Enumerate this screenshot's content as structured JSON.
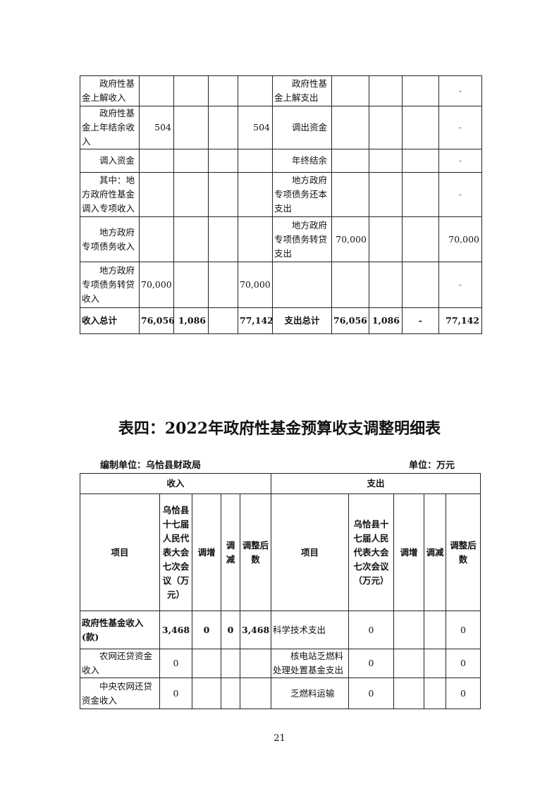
{
  "table3_continued": {
    "rows": [
      {
        "in_item": "政府性基金上解收入",
        "in_v1": "",
        "in_v2": "",
        "in_v3": "",
        "in_v4": "",
        "out_item": "政府性基金上解支出",
        "out_v1": "",
        "out_v2": "",
        "out_v3": "",
        "out_v4": "-"
      },
      {
        "in_item": "政府性基金上年结余收入",
        "in_v1": "504",
        "in_v2": "",
        "in_v3": "",
        "in_v4": "504",
        "out_item": "调出资金",
        "out_v1": "",
        "out_v2": "",
        "out_v3": "",
        "out_v4": "-"
      },
      {
        "in_item": "调入资金",
        "in_v1": "",
        "in_v2": "",
        "in_v3": "",
        "in_v4": "",
        "out_item": "年终结余",
        "out_v1": "",
        "out_v2": "",
        "out_v3": "",
        "out_v4": "-"
      },
      {
        "in_item": "其中：地方政府性基金调入专项收入",
        "in_v1": "",
        "in_v2": "",
        "in_v3": "",
        "in_v4": "",
        "out_item": "地方政府专项债务还本支出",
        "out_v1": "",
        "out_v2": "",
        "out_v3": "",
        "out_v4": "-"
      },
      {
        "in_item": "地方政府专项债务收入",
        "in_v1": "",
        "in_v2": "",
        "in_v3": "",
        "in_v4": "",
        "out_item": "地方政府专项债务转贷支出",
        "out_v1": "70,000",
        "out_v2": "",
        "out_v3": "",
        "out_v4": "70,000"
      },
      {
        "in_item": "地方政府专项债务转贷收入",
        "in_v1": "70,000",
        "in_v2": "",
        "in_v3": "",
        "in_v4": "70,000",
        "out_item": "",
        "out_v1": "",
        "out_v2": "",
        "out_v3": "",
        "out_v4": "-"
      }
    ],
    "total": {
      "in_item": "收入总计",
      "in_v1": "76,056",
      "in_v2": "1,086",
      "in_v3": "",
      "in_v4": "77,142",
      "out_item": "支出总计",
      "out_v1": "76,056",
      "out_v2": "1,086",
      "out_v3": "-",
      "out_v4": "77,142"
    }
  },
  "table4": {
    "title": "表四：2022年政府性基金预算收支调整明细表",
    "compiler": "编制单位：乌恰县财政局",
    "unit": "单位：万元",
    "group_income": "收入",
    "group_expense": "支出",
    "headers_in": [
      "项目",
      "乌恰县十七届人民代表大会七次会议（万元）",
      "调增",
      "调减",
      "调整后数"
    ],
    "headers_out": [
      "项目",
      "乌恰县十七届人民代表大会七次会议（万元）",
      "调增",
      "调减",
      "调整后数"
    ],
    "rows": [
      {
        "in_item": "政府性基金收入(款)",
        "in_v1": "3,468",
        "in_v2": "0",
        "in_v3": "0",
        "in_v4": "3,468",
        "out_item": "科学技术支出",
        "out_v1": "0",
        "out_v2": "",
        "out_v3": "",
        "out_v4": "0"
      },
      {
        "in_item": "农网还贷资金收入",
        "in_v1": "0",
        "in_v2": "",
        "in_v3": "",
        "in_v4": "",
        "out_item": "核电站乏燃料处理处置基金支出",
        "out_v1": "0",
        "out_v2": "",
        "out_v3": "",
        "out_v4": "0"
      },
      {
        "in_item": "中央农网还贷资金收入",
        "in_v1": "0",
        "in_v2": "",
        "in_v3": "",
        "in_v4": "",
        "out_item": "乏燃料运输",
        "out_v1": "0",
        "out_v2": "",
        "out_v3": "",
        "out_v4": "0"
      }
    ]
  },
  "page_number": "21"
}
